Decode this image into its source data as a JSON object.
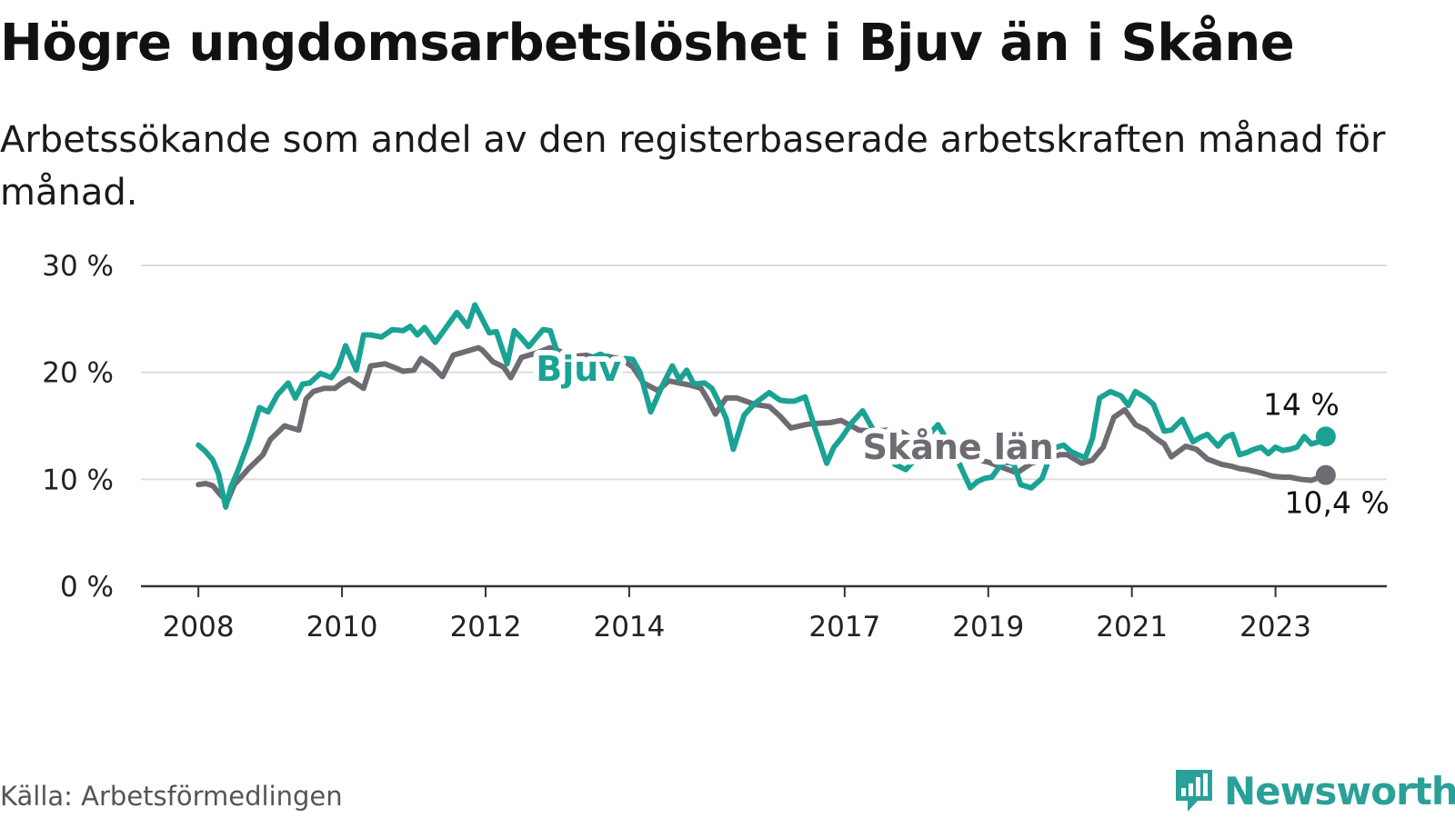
{
  "title": "Högre ungdomsarbetslöshet i Bjuv än i Skåne",
  "subtitle": "Arbetssökande som andel av den registerbaserade arbetskraften månad för månad.",
  "source": "Källa: Arbetsförmedlingen",
  "brand": "Newsworthy",
  "colors": {
    "bjuv": "#1aa394",
    "skane": "#6e6b72",
    "grid": "#dddddd",
    "axis": "#333333"
  },
  "chart_data": {
    "type": "line",
    "title": "Högre ungdomsarbetslöshet i Bjuv än i Skåne",
    "xlabel": "",
    "ylabel": "",
    "ylim": [
      0,
      30
    ],
    "xlim": [
      2007.2,
      2024.55
    ],
    "grid": true,
    "y_ticks": [
      {
        "value": 0,
        "label": "0 %"
      },
      {
        "value": 10,
        "label": "10 %"
      },
      {
        "value": 20,
        "label": "20 %"
      },
      {
        "value": 30,
        "label": "30 %"
      }
    ],
    "x_ticks": [
      {
        "value": 2008,
        "label": "2008"
      },
      {
        "value": 2010,
        "label": "2010"
      },
      {
        "value": 2012,
        "label": "2012"
      },
      {
        "value": 2014,
        "label": "2014"
      },
      {
        "value": 2017,
        "label": "2017"
      },
      {
        "value": 2019,
        "label": "2019"
      },
      {
        "value": 2021,
        "label": "2021"
      },
      {
        "value": 2023,
        "label": "2023"
      }
    ],
    "series": [
      {
        "name": "Skåne län",
        "label": "Skåne län",
        "end_label": "10,4 %",
        "x": [
          2008.0,
          2008.1,
          2008.2,
          2008.3,
          2008.4,
          2008.5,
          2008.7,
          2008.9,
          2009.0,
          2009.2,
          2009.4,
          2009.5,
          2009.6,
          2009.75,
          2009.9,
          2010.0,
          2010.1,
          2010.3,
          2010.4,
          2010.6,
          2010.75,
          2010.85,
          2011.0,
          2011.1,
          2011.25,
          2011.4,
          2011.55,
          2011.7,
          2011.9,
          2011.95,
          2012.1,
          2012.25,
          2012.35,
          2012.5,
          2012.7,
          2012.9,
          2013.1,
          2013.25,
          2013.4,
          2013.55,
          2013.7,
          2013.9,
          2014.05,
          2014.2,
          2014.4,
          2014.55,
          2014.7,
          2014.85,
          2015.0,
          2015.1,
          2015.2,
          2015.35,
          2015.5,
          2015.75,
          2015.95,
          2016.1,
          2016.25,
          2016.45,
          2016.55,
          2016.8,
          2016.95,
          2017.2,
          2017.4,
          2017.6,
          2017.8,
          2018.0,
          2018.2,
          2018.4,
          2018.6,
          2018.8,
          2019.0,
          2019.2,
          2019.4,
          2019.6,
          2019.8,
          2020.0,
          2020.1,
          2020.3,
          2020.45,
          2020.6,
          2020.75,
          2020.9,
          2021.05,
          2021.2,
          2021.3,
          2021.45,
          2021.55,
          2021.75,
          2021.9,
          2022.05,
          2022.25,
          2022.4,
          2022.5,
          2022.6,
          2022.8,
          2022.95,
          2023.1,
          2023.2,
          2023.35,
          2023.5,
          2023.7
        ],
        "values": [
          9.5,
          9.6,
          9.4,
          8.6,
          7.9,
          9.5,
          11.0,
          12.3,
          13.7,
          15.0,
          14.6,
          17.5,
          18.2,
          18.5,
          18.5,
          19.0,
          19.4,
          18.5,
          20.6,
          20.8,
          20.4,
          20.1,
          20.2,
          21.3,
          20.6,
          19.6,
          21.6,
          21.9,
          22.3,
          22.1,
          21.0,
          20.5,
          19.5,
          21.4,
          21.8,
          22.3,
          21.8,
          21.5,
          21.6,
          21.3,
          21.5,
          21.2,
          20.5,
          19.0,
          18.3,
          19.2,
          19.0,
          18.8,
          18.5,
          17.4,
          16.1,
          17.6,
          17.6,
          17.0,
          16.8,
          15.9,
          14.8,
          15.1,
          15.2,
          15.3,
          15.5,
          14.6,
          14.5,
          14.6,
          14.4,
          13.5,
          12.4,
          12.1,
          11.7,
          11.9,
          11.6,
          11.1,
          10.6,
          11.5,
          11.9,
          12.3,
          12.3,
          11.5,
          11.8,
          13.0,
          15.8,
          16.5,
          15.1,
          14.6,
          14.0,
          13.3,
          12.1,
          13.1,
          12.8,
          11.9,
          11.4,
          11.2,
          11.0,
          10.9,
          10.6,
          10.3,
          10.2,
          10.2,
          10.0,
          9.9,
          10.4
        ]
      },
      {
        "name": "Bjuv",
        "label": "Bjuv",
        "end_label": "14 %",
        "x": [
          2008.0,
          2008.1,
          2008.2,
          2008.28,
          2008.38,
          2008.45,
          2008.55,
          2008.7,
          2008.85,
          2008.97,
          2009.1,
          2009.25,
          2009.35,
          2009.45,
          2009.55,
          2009.7,
          2009.85,
          2009.95,
          2010.05,
          2010.2,
          2010.3,
          2010.4,
          2010.55,
          2010.7,
          2010.85,
          2010.95,
          2011.05,
          2011.15,
          2011.3,
          2011.45,
          2011.6,
          2011.75,
          2011.85,
          2011.95,
          2012.05,
          2012.15,
          2012.3,
          2012.4,
          2012.5,
          2012.6,
          2012.7,
          2012.8,
          2012.9,
          2013.0,
          2013.15,
          2013.3,
          2013.45,
          2013.6,
          2013.75,
          2013.85,
          2013.95,
          2014.05,
          2014.15,
          2014.3,
          2014.45,
          2014.6,
          2014.7,
          2014.8,
          2014.9,
          2015.05,
          2015.15,
          2015.25,
          2015.35,
          2015.45,
          2015.6,
          2015.75,
          2015.85,
          2015.95,
          2016.1,
          2016.2,
          2016.3,
          2016.45,
          2016.6,
          2016.75,
          2016.85,
          2016.95,
          2017.1,
          2017.25,
          2017.4,
          2017.55,
          2017.7,
          2017.85,
          2018.0,
          2018.15,
          2018.3,
          2018.45,
          2018.6,
          2018.75,
          2018.85,
          2018.95,
          2019.05,
          2019.2,
          2019.35,
          2019.45,
          2019.6,
          2019.75,
          2019.9,
          2020.05,
          2020.15,
          2020.25,
          2020.35,
          2020.45,
          2020.55,
          2020.7,
          2020.85,
          2020.95,
          2021.05,
          2021.2,
          2021.3,
          2021.45,
          2021.55,
          2021.7,
          2021.85,
          2021.95,
          2022.05,
          2022.2,
          2022.3,
          2022.4,
          2022.5,
          2022.6,
          2022.7,
          2022.8,
          2022.9,
          2023.0,
          2023.1,
          2023.2,
          2023.3,
          2023.4,
          2023.5,
          2023.6,
          2023.7
        ],
        "values": [
          13.2,
          12.6,
          11.8,
          10.5,
          7.4,
          9.2,
          10.8,
          13.5,
          16.7,
          16.3,
          17.9,
          19.0,
          17.6,
          18.9,
          19.0,
          19.9,
          19.5,
          20.5,
          22.5,
          20.2,
          23.5,
          23.5,
          23.3,
          24.0,
          23.9,
          24.3,
          23.5,
          24.2,
          22.8,
          24.2,
          25.6,
          24.3,
          26.3,
          25.0,
          23.7,
          23.8,
          20.8,
          23.9,
          23.2,
          22.4,
          23.2,
          24.0,
          23.9,
          21.8,
          21.5,
          20.9,
          21.3,
          21.7,
          21.2,
          20.8,
          21.3,
          21.2,
          20.0,
          16.3,
          18.6,
          20.6,
          19.3,
          20.2,
          18.9,
          19.0,
          18.5,
          17.2,
          15.7,
          12.8,
          16.0,
          17.1,
          17.6,
          18.1,
          17.4,
          17.3,
          17.3,
          17.7,
          14.5,
          11.5,
          13.0,
          13.8,
          15.3,
          16.4,
          14.6,
          13.7,
          11.4,
          10.9,
          12.0,
          14.0,
          15.1,
          13.4,
          11.4,
          9.2,
          9.8,
          10.1,
          10.2,
          11.6,
          11.5,
          9.5,
          9.2,
          10.1,
          12.9,
          13.2,
          12.6,
          12.3,
          12.0,
          13.8,
          17.6,
          18.2,
          17.8,
          16.9,
          18.2,
          17.6,
          17.0,
          14.5,
          14.6,
          15.6,
          13.5,
          13.9,
          14.2,
          13.1,
          13.9,
          14.2,
          12.3,
          12.5,
          12.8,
          13.0,
          12.4,
          13.0,
          12.7,
          12.8,
          13.0,
          14.0,
          13.3,
          13.5,
          14.0
        ]
      }
    ]
  }
}
